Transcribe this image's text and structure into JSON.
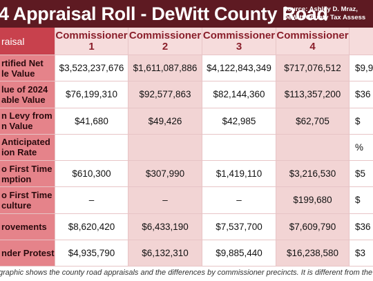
{
  "header": {
    "title": "4 Appraisal Roll - DeWitt County Road",
    "source": [
      "Source: Ashley D. Mraz,",
      "DeWitt County Tax Assess"
    ]
  },
  "table": {
    "columns": [
      [
        "raisal"
      ],
      [
        "Commissioner",
        "1"
      ],
      [
        "Commissioner",
        "2"
      ],
      [
        "Commissioner",
        "3"
      ],
      [
        "Commissioner",
        "4"
      ],
      null
    ],
    "rows": [
      [
        [
          "rtified Net",
          "le Value"
        ],
        "$3,523,237,676",
        "$1,611,087,886",
        "$4,122,843,349",
        "$717,076,512",
        "$9,9"
      ],
      [
        [
          "lue of 2024",
          "able Value"
        ],
        "$76,199,310",
        "$92,577,863",
        "$82,144,360",
        "$113,357,200",
        "$36"
      ],
      [
        [
          "n Levy from",
          "n Value"
        ],
        "$41,680",
        "$49,426",
        "$42,985",
        "$62,705",
        "$"
      ],
      [
        [
          "Anticipated",
          "ion Rate"
        ],
        null,
        null,
        null,
        null,
        "%"
      ],
      [
        [
          "o First Time",
          "mption"
        ],
        "$610,300",
        "$307,990",
        "$1,419,110",
        "$3,216,530",
        "$5"
      ],
      [
        [
          "o First Time",
          "culture"
        ],
        "–",
        "–",
        "–",
        "$199,680",
        "$"
      ],
      [
        [
          "rovements"
        ],
        "$8,620,420",
        "$6,433,190",
        "$7,537,700",
        "$7,609,790",
        "$36"
      ],
      [
        [
          "nder Protest"
        ],
        "$4,935,790",
        "$6,132,310",
        "$9,885,440",
        "$16,238,580",
        "$3"
      ]
    ]
  },
  "caption": "graphic shows the county road appraisals and the differences by commissioner precincts. It is different from the total DeWitt County Ap"
}
